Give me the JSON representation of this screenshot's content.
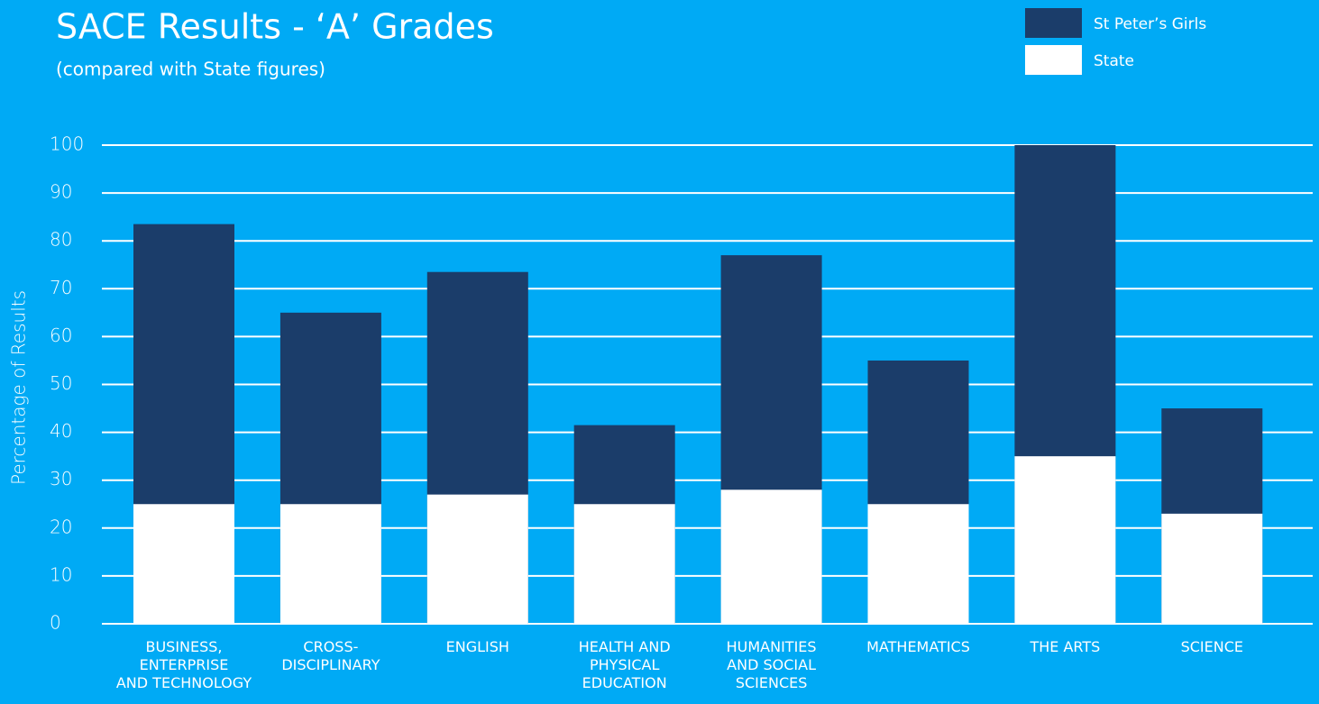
{
  "chart_data": {
    "type": "bar",
    "title": "SACE Results - ‘A’ Grades",
    "subtitle": "(compared with State figures)",
    "y_label": "Percentage of Results",
    "categories": [
      "BUSINESS,\nENTERPRISE\nAND TECHNOLOGY",
      "CROSS-\nDISCIPLINARY",
      "ENGLISH",
      "HEALTH AND\nPHYSICAL\nEDUCATION",
      "HUMANITIES\nAND SOCIAL\nSCIENCES",
      "MATHEMATICS",
      "THE ARTS",
      "SCIENCE"
    ],
    "series": [
      {
        "name": "St Peter’s Girls",
        "color": "#1b3d6a",
        "values": [
          83.5,
          65,
          73.5,
          41.5,
          77,
          55,
          100,
          45
        ]
      },
      {
        "name": "State",
        "color": "#ffffff",
        "values": [
          25,
          25,
          27,
          25,
          28,
          25,
          35,
          23
        ]
      }
    ],
    "ylim": [
      0,
      100
    ],
    "yticks": [
      0,
      10,
      20,
      30,
      40,
      50,
      60,
      70,
      80,
      90,
      100
    ],
    "grid": true,
    "legend": "top-right"
  }
}
